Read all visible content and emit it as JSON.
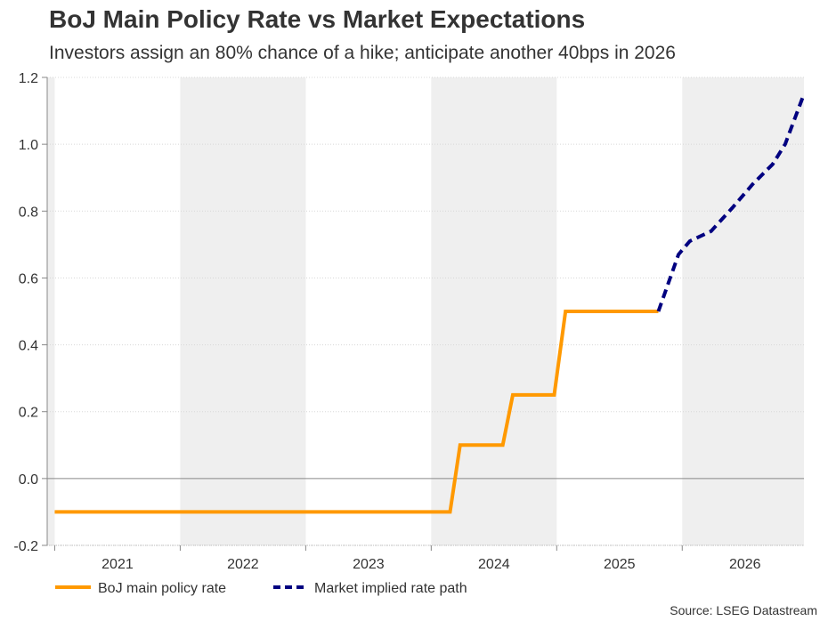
{
  "chart_data": {
    "type": "line",
    "title": "BoJ Main Policy Rate vs Market Expectations",
    "subtitle": "Investors assign an 80% chance of a hike; anticipate another 40bps in 2026",
    "source": "Source: LSEG Datastream",
    "xlabel": "",
    "ylabel": "",
    "xlim": [
      2020.94,
      2026.97
    ],
    "ylim": [
      -0.2,
      1.2
    ],
    "yticks": [
      -0.2,
      0.0,
      0.2,
      0.4,
      0.6,
      0.8,
      1.0,
      1.2
    ],
    "ytick_labels": [
      "-0.2",
      "0.0",
      "0.2",
      "0.4",
      "0.6",
      "0.8",
      "1.0",
      "1.2"
    ],
    "xtick_labels": [
      "2021",
      "2022",
      "2023",
      "2024",
      "2025",
      "2026"
    ],
    "shaded_years": [
      2020,
      2022,
      2024,
      2026
    ],
    "grid": true,
    "legend_position": "bottom-left",
    "colors": {
      "policy": "#FF9900",
      "market": "#000080",
      "band": "#EFEFEF",
      "grid": "#D8D8D8",
      "zero": "#888888"
    },
    "series": [
      {
        "name": "BoJ main policy rate",
        "style": "solid",
        "x": [
          2021.0,
          2024.15,
          2024.23,
          2024.57,
          2024.65,
          2024.98,
          2025.07,
          2025.81
        ],
        "y": [
          -0.1,
          -0.1,
          0.1,
          0.1,
          0.25,
          0.25,
          0.5,
          0.5
        ]
      },
      {
        "name": "Market implied rate path",
        "style": "dashed",
        "x": [
          2025.81,
          2025.97,
          2026.06,
          2026.23,
          2026.4,
          2026.56,
          2026.72,
          2026.82,
          2026.97
        ],
        "y": [
          0.5,
          0.67,
          0.71,
          0.74,
          0.81,
          0.88,
          0.94,
          1.0,
          1.15
        ]
      }
    ]
  }
}
